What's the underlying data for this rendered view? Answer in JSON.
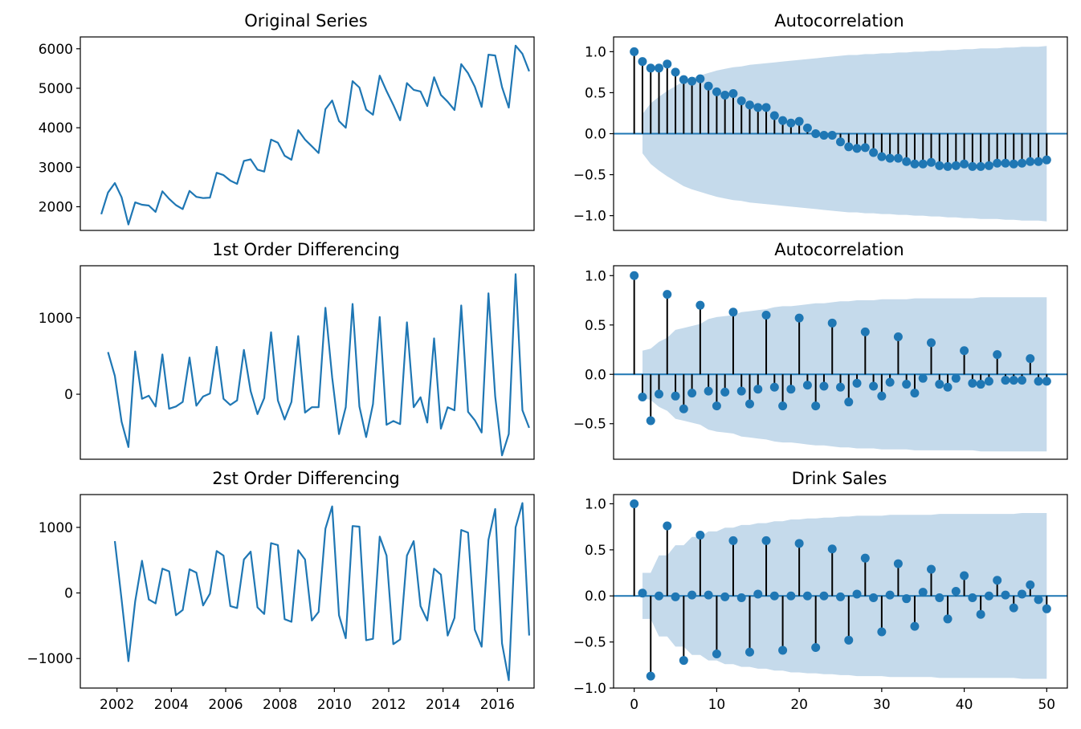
{
  "colors": {
    "line": "#1f77b4",
    "stem": "#000000",
    "band": "#c5daeb",
    "axes": "#000000"
  },
  "chart_data": [
    {
      "id": "original",
      "type": "line",
      "title": "Original Series",
      "x_start": 2001.42,
      "x_step": 0.25,
      "xlim": [
        2000.65,
        2017.35
      ],
      "ylim": [
        1400,
        6300
      ],
      "yticks": [
        2000,
        3000,
        4000,
        5000,
        6000
      ],
      "yticklabels": [
        "2000",
        "3000",
        "4000",
        "5000",
        "6000"
      ],
      "xticks": [],
      "values": [
        1810,
        2360,
        2600,
        2240,
        1550,
        2110,
        2050,
        2030,
        1870,
        2390,
        2200,
        2040,
        1940,
        2400,
        2250,
        2220,
        2230,
        2860,
        2800,
        2660,
        2580,
        3160,
        3200,
        2940,
        2890,
        3700,
        3620,
        3290,
        3190,
        3940,
        3700,
        3530,
        3360,
        4470,
        4690,
        4170,
        4000,
        5180,
        5020,
        4460,
        4330,
        5320,
        4930,
        4580,
        4190,
        5130,
        4960,
        4920,
        4550,
        5280,
        4830,
        4660,
        4450,
        5610,
        5380,
        5040,
        4530,
        5850,
        5830,
        5030,
        4510,
        6080,
        5870,
        5430
      ]
    },
    {
      "id": "acf-original",
      "type": "stem",
      "title": "Autocorrelation",
      "xlim": [
        -2.5,
        52.5
      ],
      "ylim": [
        -1.18,
        1.18
      ],
      "yticks": [
        -1.0,
        -0.5,
        0.0,
        0.5,
        1.0
      ],
      "yticklabels": [
        "−1.0",
        "−0.5",
        "0.0",
        "0.5",
        "1.0"
      ],
      "xticks": [],
      "values": [
        1.0,
        0.88,
        0.8,
        0.8,
        0.85,
        0.75,
        0.66,
        0.64,
        0.67,
        0.58,
        0.51,
        0.47,
        0.49,
        0.4,
        0.35,
        0.32,
        0.32,
        0.22,
        0.16,
        0.13,
        0.15,
        0.07,
        0.0,
        -0.02,
        -0.02,
        -0.1,
        -0.16,
        -0.18,
        -0.17,
        -0.23,
        -0.28,
        -0.3,
        -0.3,
        -0.34,
        -0.37,
        -0.37,
        -0.35,
        -0.39,
        -0.4,
        -0.39,
        -0.37,
        -0.4,
        -0.4,
        -0.39,
        -0.36,
        -0.36,
        -0.37,
        -0.36,
        -0.34,
        -0.34,
        -0.32
      ],
      "conf_upper": [
        0.24,
        0.37,
        0.45,
        0.52,
        0.58,
        0.64,
        0.68,
        0.71,
        0.74,
        0.77,
        0.79,
        0.81,
        0.82,
        0.84,
        0.85,
        0.86,
        0.87,
        0.88,
        0.89,
        0.9,
        0.91,
        0.92,
        0.93,
        0.94,
        0.95,
        0.96,
        0.96,
        0.97,
        0.97,
        0.98,
        0.98,
        0.99,
        0.99,
        1.0,
        1.0,
        1.01,
        1.01,
        1.02,
        1.02,
        1.03,
        1.03,
        1.04,
        1.04,
        1.04,
        1.05,
        1.05,
        1.06,
        1.06,
        1.06,
        1.07
      ]
    },
    {
      "id": "diff1",
      "type": "line",
      "title": "1st Order Differencing",
      "x_start": 2001.67,
      "x_step": 0.25,
      "xlim": [
        2000.65,
        2017.35
      ],
      "ylim": [
        -850,
        1680
      ],
      "yticks": [
        0,
        1000
      ],
      "yticklabels": [
        "0",
        "1000"
      ],
      "xticks": [],
      "values": [
        550,
        240,
        -360,
        -690,
        560,
        -60,
        -20,
        -160,
        520,
        -190,
        -160,
        -100,
        480,
        -150,
        -30,
        10,
        620,
        -60,
        -140,
        -80,
        580,
        40,
        -260,
        -50,
        810,
        -80,
        -330,
        -100,
        760,
        -240,
        -170,
        -170,
        1130,
        220,
        -520,
        -170,
        1180,
        -160,
        -560,
        -130,
        1010,
        -400,
        -350,
        -390,
        940,
        -170,
        -40,
        -370,
        730,
        -450,
        -170,
        -210,
        1160,
        -230,
        -340,
        -500,
        1320,
        -30,
        -800,
        -520,
        1570,
        -210,
        -440
      ]
    },
    {
      "id": "acf-diff1",
      "type": "stem",
      "title": "Autocorrelation",
      "xlim": [
        -2.5,
        52.5
      ],
      "ylim": [
        -0.86,
        1.1
      ],
      "yticks": [
        -0.5,
        0.0,
        0.5,
        1.0
      ],
      "yticklabels": [
        "−0.5",
        "0.0",
        "0.5",
        "1.0"
      ],
      "xticks": [],
      "values": [
        1.0,
        -0.23,
        -0.47,
        -0.2,
        0.81,
        -0.22,
        -0.35,
        -0.19,
        0.7,
        -0.17,
        -0.32,
        -0.18,
        0.63,
        -0.17,
        -0.3,
        -0.15,
        0.6,
        -0.13,
        -0.32,
        -0.15,
        0.57,
        -0.11,
        -0.32,
        -0.12,
        0.52,
        -0.13,
        -0.28,
        -0.09,
        0.43,
        -0.12,
        -0.22,
        -0.08,
        0.38,
        -0.1,
        -0.19,
        -0.04,
        0.32,
        -0.1,
        -0.13,
        -0.04,
        0.24,
        -0.09,
        -0.1,
        -0.07,
        0.2,
        -0.06,
        -0.06,
        -0.06,
        0.16,
        -0.07,
        -0.07
      ],
      "conf_upper": [
        0.24,
        0.26,
        0.33,
        0.37,
        0.45,
        0.47,
        0.49,
        0.51,
        0.56,
        0.58,
        0.59,
        0.6,
        0.63,
        0.64,
        0.65,
        0.66,
        0.68,
        0.69,
        0.69,
        0.7,
        0.71,
        0.72,
        0.72,
        0.73,
        0.74,
        0.74,
        0.75,
        0.75,
        0.75,
        0.76,
        0.76,
        0.76,
        0.76,
        0.77,
        0.77,
        0.77,
        0.77,
        0.77,
        0.77,
        0.77,
        0.77,
        0.78,
        0.78,
        0.78,
        0.78,
        0.78,
        0.78,
        0.78,
        0.78,
        0.78
      ]
    },
    {
      "id": "diff2",
      "type": "line",
      "title": "2st Order Differencing",
      "x_start": 2001.92,
      "x_step": 0.25,
      "xlim": [
        2000.65,
        2017.35
      ],
      "ylim": [
        -1450,
        1500
      ],
      "yticks": [
        -1000,
        0,
        1000
      ],
      "yticklabels": [
        "−1000",
        "0",
        "1000"
      ],
      "xticks": [
        2002,
        2004,
        2006,
        2008,
        2010,
        2012,
        2014,
        2016
      ],
      "xticklabels": [
        "2002",
        "2004",
        "2006",
        "2008",
        "2010",
        "2012",
        "2014",
        "2016"
      ],
      "values": [
        790,
        -100,
        -1040,
        -130,
        490,
        -100,
        -160,
        370,
        330,
        -340,
        -260,
        360,
        310,
        -190,
        -10,
        640,
        570,
        -200,
        -230,
        510,
        630,
        -220,
        -320,
        760,
        730,
        -400,
        -440,
        650,
        510,
        -420,
        -290,
        980,
        1320,
        -340,
        -690,
        1020,
        1010,
        -720,
        -700,
        860,
        570,
        -780,
        -710,
        570,
        790,
        -200,
        -420,
        370,
        280,
        -650,
        -380,
        960,
        920,
        -560,
        -820,
        810,
        1280,
        -770,
        -1330,
        1000,
        1370,
        -650
      ]
    },
    {
      "id": "acf-diff2",
      "type": "stem",
      "title": "Drink Sales",
      "xlim": [
        -2.5,
        52.5
      ],
      "ylim": [
        -1.0,
        1.1
      ],
      "yticks": [
        -1.0,
        -0.5,
        0.0,
        0.5,
        1.0
      ],
      "yticklabels": [
        "−1.0",
        "−0.5",
        "0.0",
        "0.5",
        "1.0"
      ],
      "xticks": [
        0,
        10,
        20,
        30,
        40,
        50
      ],
      "xticklabels": [
        "0",
        "10",
        "20",
        "30",
        "40",
        "50"
      ],
      "values": [
        1.0,
        0.03,
        -0.87,
        0.0,
        0.76,
        -0.01,
        -0.7,
        0.01,
        0.66,
        0.01,
        -0.63,
        -0.01,
        0.6,
        -0.02,
        -0.61,
        0.02,
        0.6,
        0.0,
        -0.59,
        0.0,
        0.57,
        0.0,
        -0.56,
        0.0,
        0.51,
        -0.01,
        -0.48,
        0.02,
        0.41,
        -0.02,
        -0.39,
        0.01,
        0.35,
        -0.03,
        -0.33,
        0.04,
        0.29,
        -0.02,
        -0.25,
        0.05,
        0.22,
        -0.02,
        -0.2,
        0.0,
        0.17,
        0.01,
        -0.13,
        0.02,
        0.12,
        -0.04,
        -0.14
      ],
      "conf_upper": [
        0.25,
        0.25,
        0.44,
        0.44,
        0.55,
        0.55,
        0.64,
        0.64,
        0.7,
        0.7,
        0.74,
        0.74,
        0.77,
        0.77,
        0.79,
        0.79,
        0.81,
        0.81,
        0.83,
        0.83,
        0.84,
        0.84,
        0.85,
        0.85,
        0.86,
        0.86,
        0.87,
        0.87,
        0.87,
        0.87,
        0.88,
        0.88,
        0.88,
        0.88,
        0.88,
        0.88,
        0.89,
        0.89,
        0.89,
        0.89,
        0.89,
        0.89,
        0.89,
        0.89,
        0.89,
        0.89,
        0.9,
        0.9,
        0.9,
        0.9
      ]
    }
  ]
}
